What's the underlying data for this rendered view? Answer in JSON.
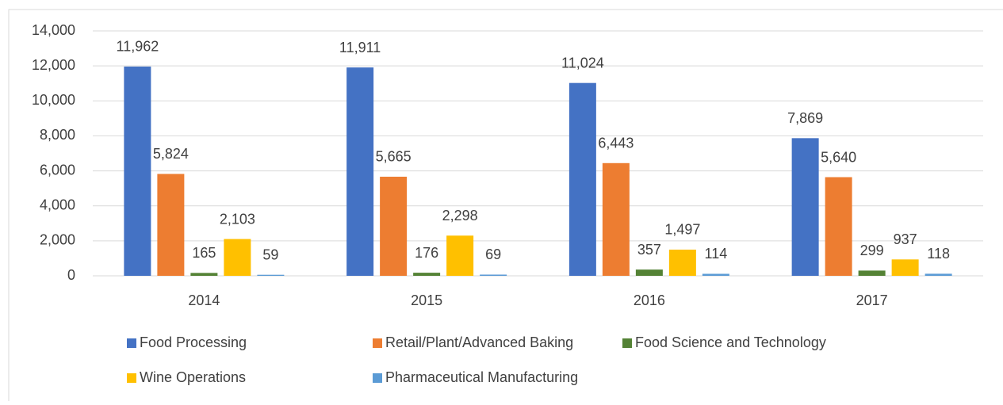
{
  "chart_data": {
    "type": "bar",
    "categories": [
      "2014",
      "2015",
      "2016",
      "2017"
    ],
    "series": [
      {
        "name": "Food Processing",
        "color": "#4472c4",
        "values": [
          11962,
          11911,
          11024,
          7869
        ],
        "value_labels": [
          "11,962",
          "11,911",
          "11,024",
          "7,869"
        ]
      },
      {
        "name": "Retail/Plant/Advanced Baking",
        "color": "#ed7d31",
        "values": [
          5824,
          5665,
          6443,
          5640
        ],
        "value_labels": [
          "5,824",
          "5,665",
          "6,443",
          "5,640"
        ]
      },
      {
        "name": "Food Science and Technology",
        "color": "#548235",
        "values": [
          165,
          176,
          357,
          299
        ],
        "value_labels": [
          "165",
          "176",
          "357",
          "299"
        ]
      },
      {
        "name": "Wine Operations",
        "color": "#ffc000",
        "values": [
          2103,
          2298,
          1497,
          937
        ],
        "value_labels": [
          "2,103",
          "2,298",
          "1,497",
          "937"
        ]
      },
      {
        "name": "Pharmaceutical Manufacturing",
        "color": "#5b9bd5",
        "values": [
          59,
          69,
          114,
          118
        ],
        "value_labels": [
          "59",
          "69",
          "114",
          "118"
        ]
      }
    ],
    "ylim": [
      0,
      14000
    ],
    "yticks": [
      0,
      {
        "value": 2000,
        "label": "2,000"
      },
      {
        "value": 4000,
        "label": "4,000"
      },
      {
        "value": 6000,
        "label": "6,000"
      },
      {
        "value": 8000,
        "label": "8,000"
      },
      {
        "value": 10000,
        "label": "10,000"
      },
      {
        "value": 12000,
        "label": "12,000"
      },
      {
        "value": 14000,
        "label": "14,000"
      }
    ],
    "grid": true,
    "legend": "bottom"
  }
}
